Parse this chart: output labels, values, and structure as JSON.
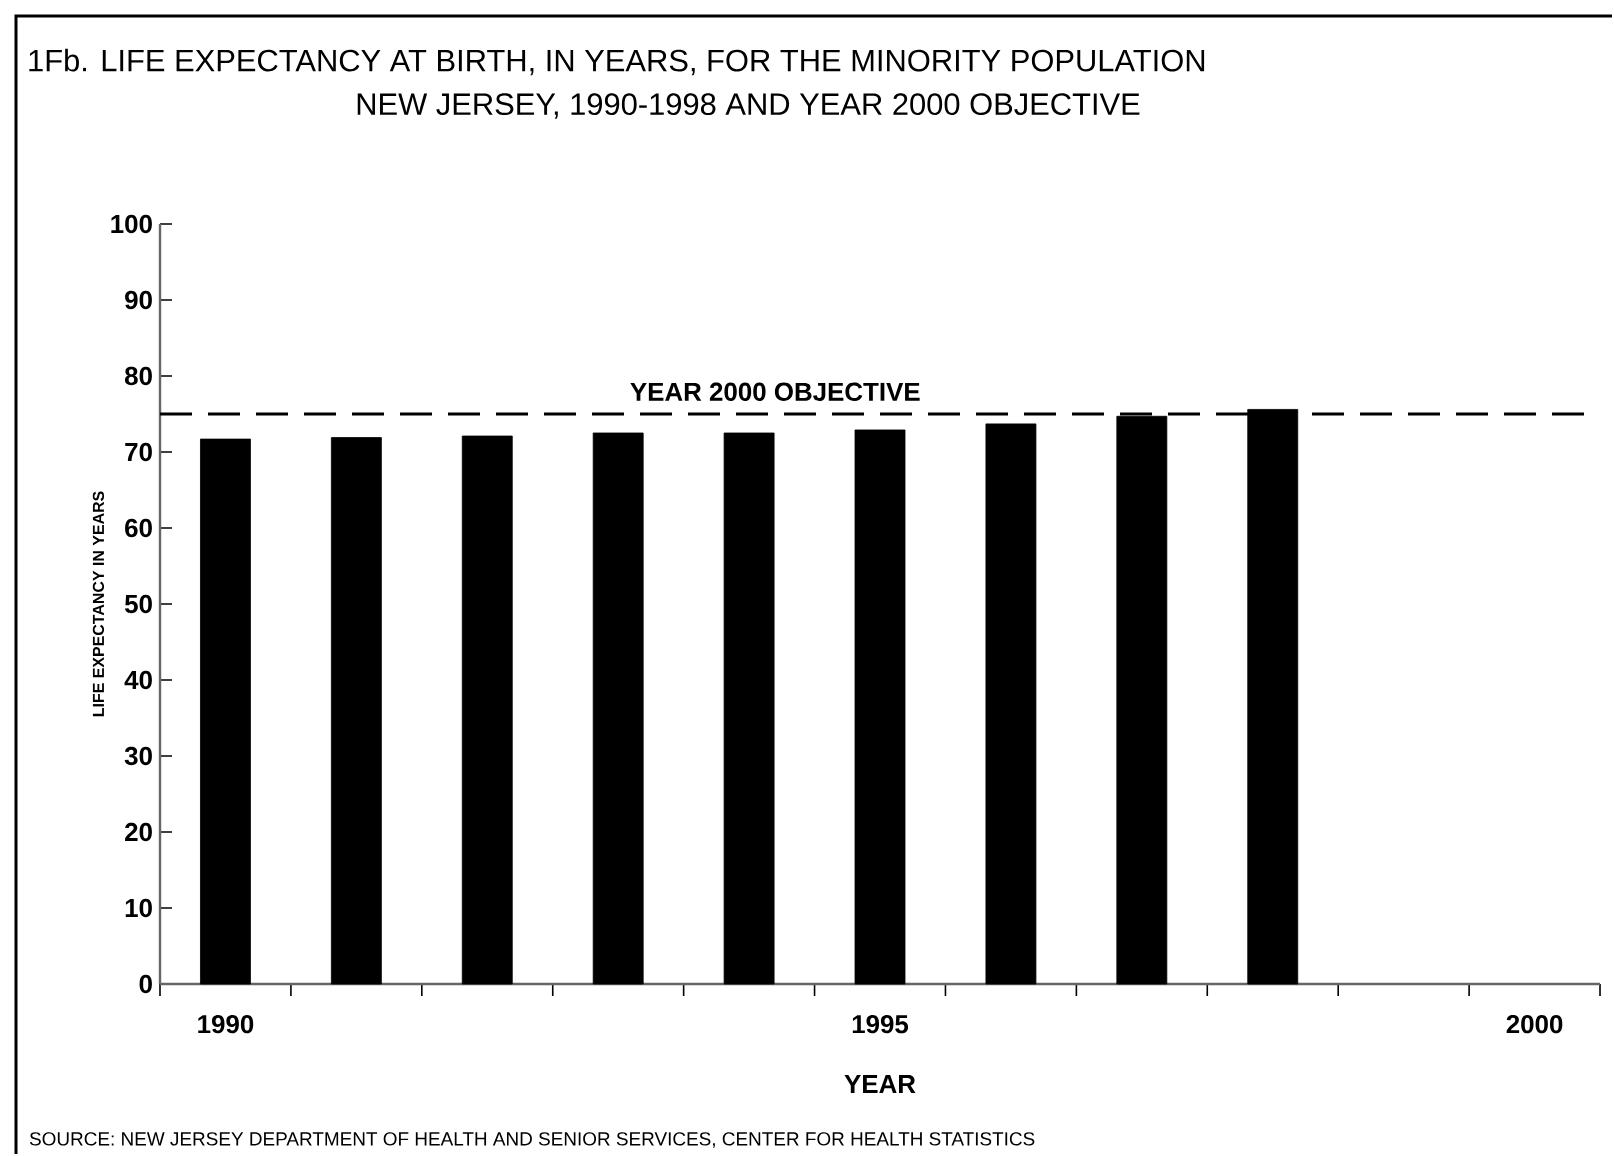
{
  "chart_data": {
    "type": "bar",
    "title": "1Fb. LIFE EXPECTANCY AT BIRTH, IN YEARS, FOR THE MINORITY POPULATION",
    "subtitle": "NEW JERSEY, 1990-1998 AND YEAR 2000 OBJECTIVE",
    "xlabel": "YEAR",
    "ylabel": "LIFE EXPECTANCY IN YEARS",
    "categories": [
      "1990",
      null,
      null,
      null,
      null,
      "1995",
      null,
      null,
      null,
      null,
      "2000"
    ],
    "values": [
      71.7,
      71.9,
      72.1,
      72.5,
      72.5,
      72.9,
      73.7,
      74.7,
      75.6,
      null,
      null
    ],
    "color": "#000000",
    "ylim": [
      0,
      100
    ],
    "yticks": [
      0,
      10,
      20,
      30,
      40,
      50,
      60,
      70,
      80,
      90,
      100
    ],
    "ref_lines": [
      {
        "axis": "y",
        "value": 75,
        "label": "YEAR 2000 OBJECTIVE",
        "color": "#000000",
        "line_style": "dashed"
      }
    ],
    "annotations": [
      "SOURCE:  NEW JERSEY DEPARTMENT OF HEALTH AND SENIOR SERVICES, CENTER FOR HEALTH STATISTICS"
    ]
  }
}
